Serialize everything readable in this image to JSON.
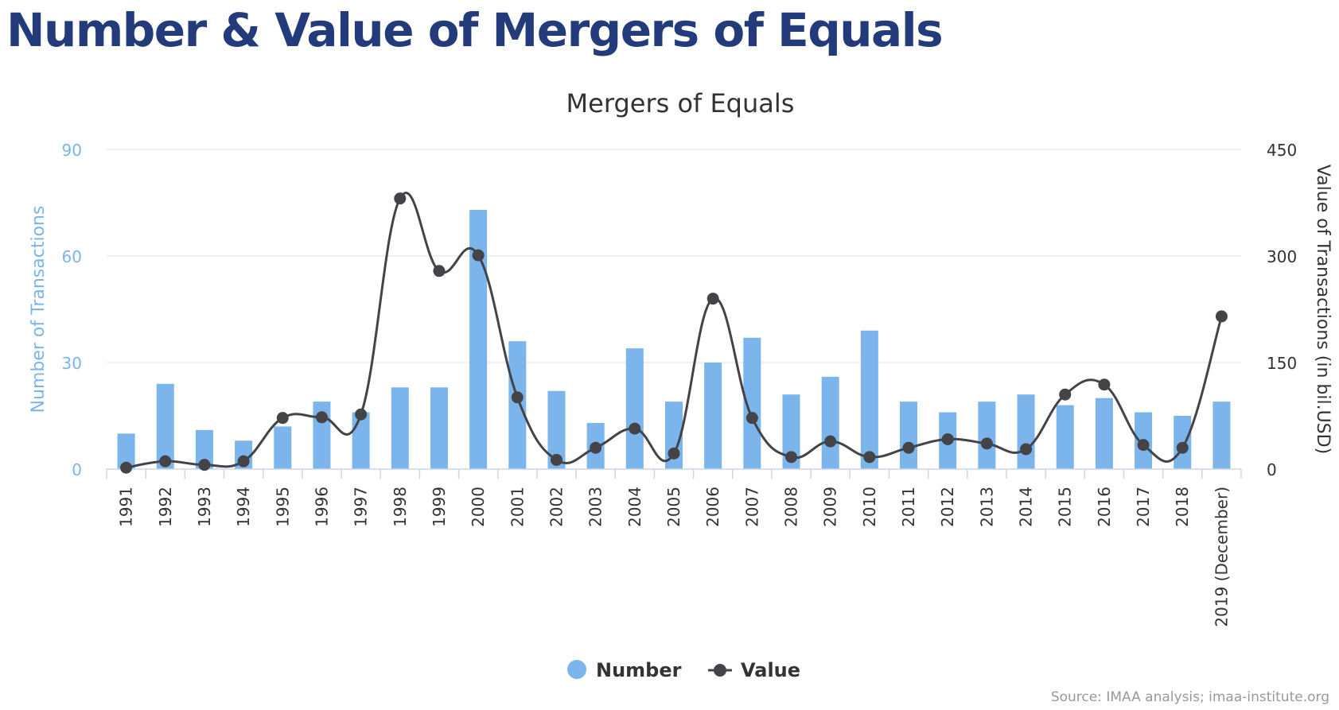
{
  "page": {
    "heading": "Number & Value of Mergers of Equals",
    "source": "Source: IMAA analysis; imaa-institute.org"
  },
  "chart_data": {
    "type": "bar",
    "title": "Mergers of Equals",
    "categories": [
      "1991",
      "1992",
      "1993",
      "1994",
      "1995",
      "1996",
      "1997",
      "1998",
      "1999",
      "2000",
      "2001",
      "2002",
      "2003",
      "2004",
      "2005",
      "2006",
      "2007",
      "2008",
      "2009",
      "2010",
      "2011",
      "2012",
      "2013",
      "2014",
      "2015",
      "2016",
      "2017",
      "2018",
      "2019 (December)"
    ],
    "series": [
      {
        "name": "Number",
        "type": "bar",
        "axis": "left",
        "color": "#7cb5ec",
        "values": [
          10,
          24,
          11,
          8,
          12,
          19,
          16,
          23,
          23,
          73,
          36,
          22,
          13,
          34,
          19,
          30,
          37,
          21,
          26,
          39,
          19,
          16,
          19,
          21,
          18,
          20,
          16,
          15,
          19
        ]
      },
      {
        "name": "Value",
        "type": "line",
        "axis": "right",
        "color": "#434348",
        "values": [
          2,
          11,
          6,
          11,
          72,
          73,
          77,
          381,
          279,
          301,
          101,
          13,
          30,
          57,
          22,
          240,
          72,
          17,
          39,
          17,
          30,
          42,
          36,
          28,
          105,
          119,
          34,
          30,
          215
        ]
      }
    ],
    "y_left": {
      "label": "Number of Transactions",
      "ticks": [
        0,
        30,
        60,
        90
      ],
      "range": [
        0,
        90
      ]
    },
    "y_right": {
      "label": "Value of Transactions (in bil.USD)",
      "ticks": [
        0,
        150,
        300,
        450
      ],
      "range": [
        0,
        450
      ]
    },
    "grid": true,
    "legend_position": "bottom-center"
  }
}
